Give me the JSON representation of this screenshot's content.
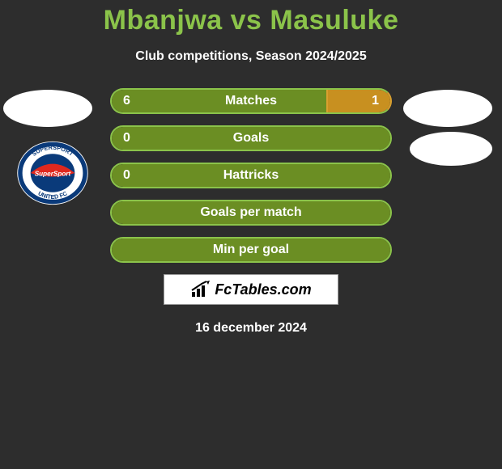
{
  "title_color": "#8bc34a",
  "title": "Mbanjwa vs Masuluke",
  "subtitle": "Club competitions, Season 2024/2025",
  "brand": "FcTables.com",
  "date": "16 december 2024",
  "colors": {
    "green_border": "#8bc34a",
    "green_fill": "#6b8e23",
    "orange_border": "#d8a030",
    "orange_fill": "#c89020",
    "bg": "#2d2d2d",
    "white": "#ffffff"
  },
  "badge": {
    "outer": "#ffffff",
    "ring": "#0a3a7a",
    "inner": "#0a3a7a",
    "accent": "#e0281e",
    "text": "SUPERSPORT"
  },
  "bars": [
    {
      "label": "Matches",
      "left": "6",
      "right": "1",
      "left_pct": 77,
      "right_pct": 23,
      "show_left": true,
      "show_right": true
    },
    {
      "label": "Goals",
      "left": "0",
      "right": "",
      "left_pct": 100,
      "right_pct": 0,
      "show_left": true,
      "show_right": false
    },
    {
      "label": "Hattricks",
      "left": "0",
      "right": "",
      "left_pct": 100,
      "right_pct": 0,
      "show_left": true,
      "show_right": false
    },
    {
      "label": "Goals per match",
      "left": "",
      "right": "",
      "left_pct": 100,
      "right_pct": 0,
      "show_left": false,
      "show_right": false
    },
    {
      "label": "Min per goal",
      "left": "",
      "right": "",
      "left_pct": 100,
      "right_pct": 0,
      "show_left": false,
      "show_right": false
    }
  ]
}
